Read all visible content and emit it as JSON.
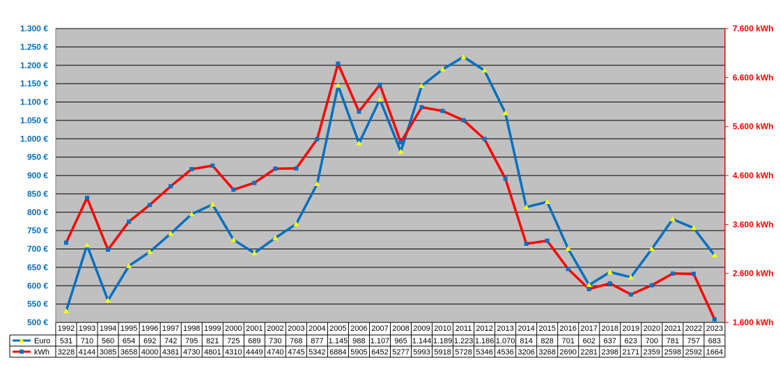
{
  "chart_data": {
    "type": "line",
    "categories": [
      "1992",
      "1993",
      "1994",
      "1995",
      "1996",
      "1997",
      "1998",
      "1999",
      "2000",
      "2001",
      "2002",
      "2003",
      "2004",
      "2005",
      "2006",
      "2007",
      "2008",
      "2009",
      "2010",
      "2011",
      "2012",
      "2013",
      "2014",
      "2015",
      "2016",
      "2017",
      "2018",
      "2019",
      "2020",
      "2021",
      "2022",
      "2023"
    ],
    "series": [
      {
        "name": "Euro",
        "axis": "left",
        "color": "#0070c0",
        "marker_color": "#ffff00",
        "values": [
          531,
          710,
          560,
          654,
          692,
          742,
          795,
          821,
          725,
          689,
          730,
          768,
          877,
          1145,
          988,
          1107,
          965,
          1144,
          1189,
          1223,
          1186,
          1070,
          814,
          828,
          701,
          602,
          637,
          623,
          700,
          781,
          757,
          683
        ],
        "labels": [
          "531",
          "710",
          "560",
          "654",
          "692",
          "742",
          "795",
          "821",
          "725",
          "689",
          "730",
          "768",
          "877",
          "1.145",
          "988",
          "1.107",
          "965",
          "1.144",
          "1.189",
          "1.223",
          "1.186",
          "1.070",
          "814",
          "828",
          "701",
          "602",
          "637",
          "623",
          "700",
          "781",
          "757",
          "683"
        ]
      },
      {
        "name": "kWh",
        "axis": "right",
        "color": "#ff0000",
        "marker_color": "#0070c0",
        "values": [
          3228,
          4144,
          3085,
          3658,
          4000,
          4381,
          4730,
          4801,
          4310,
          4449,
          4740,
          4745,
          5342,
          6884,
          5905,
          6452,
          5277,
          5993,
          5918,
          5728,
          5346,
          4536,
          3206,
          3268,
          2690,
          2281,
          2398,
          2171,
          2359,
          2598,
          2592,
          1664
        ],
        "labels": [
          "3228",
          "4144",
          "3085",
          "3658",
          "4000",
          "4381",
          "4730",
          "4801",
          "4310",
          "4449",
          "4740",
          "4745",
          "5342",
          "6884",
          "5905",
          "6452",
          "5277",
          "5993",
          "5918",
          "5728",
          "5346",
          "4536",
          "3206",
          "3268",
          "2690",
          "2281",
          "2398",
          "2171",
          "2359",
          "2598",
          "2592",
          "1664"
        ]
      }
    ],
    "y_left": {
      "min": 500,
      "max": 1300,
      "step": 50,
      "unit": "€",
      "tick_labels": [
        "500 €",
        "550 €",
        "600 €",
        "650 €",
        "700 €",
        "750 €",
        "800 €",
        "850 €",
        "900 €",
        "950 €",
        "1.000 €",
        "1.050 €",
        "1.100 €",
        "1.150 €",
        "1.200 €",
        "1.250 €",
        "1.300 €"
      ]
    },
    "y_right": {
      "min": 1600,
      "max": 7600,
      "step": 1000,
      "unit": "kWh",
      "tick_labels": [
        "1.600 kWh",
        "2.600 kWh",
        "3.600 kWh",
        "4.600 kWh",
        "5.600 kWh",
        "6.600 kWh",
        "7.600 kWh"
      ]
    },
    "grid": true,
    "plot_background": "#c0c0c0",
    "legend": "data-table"
  }
}
